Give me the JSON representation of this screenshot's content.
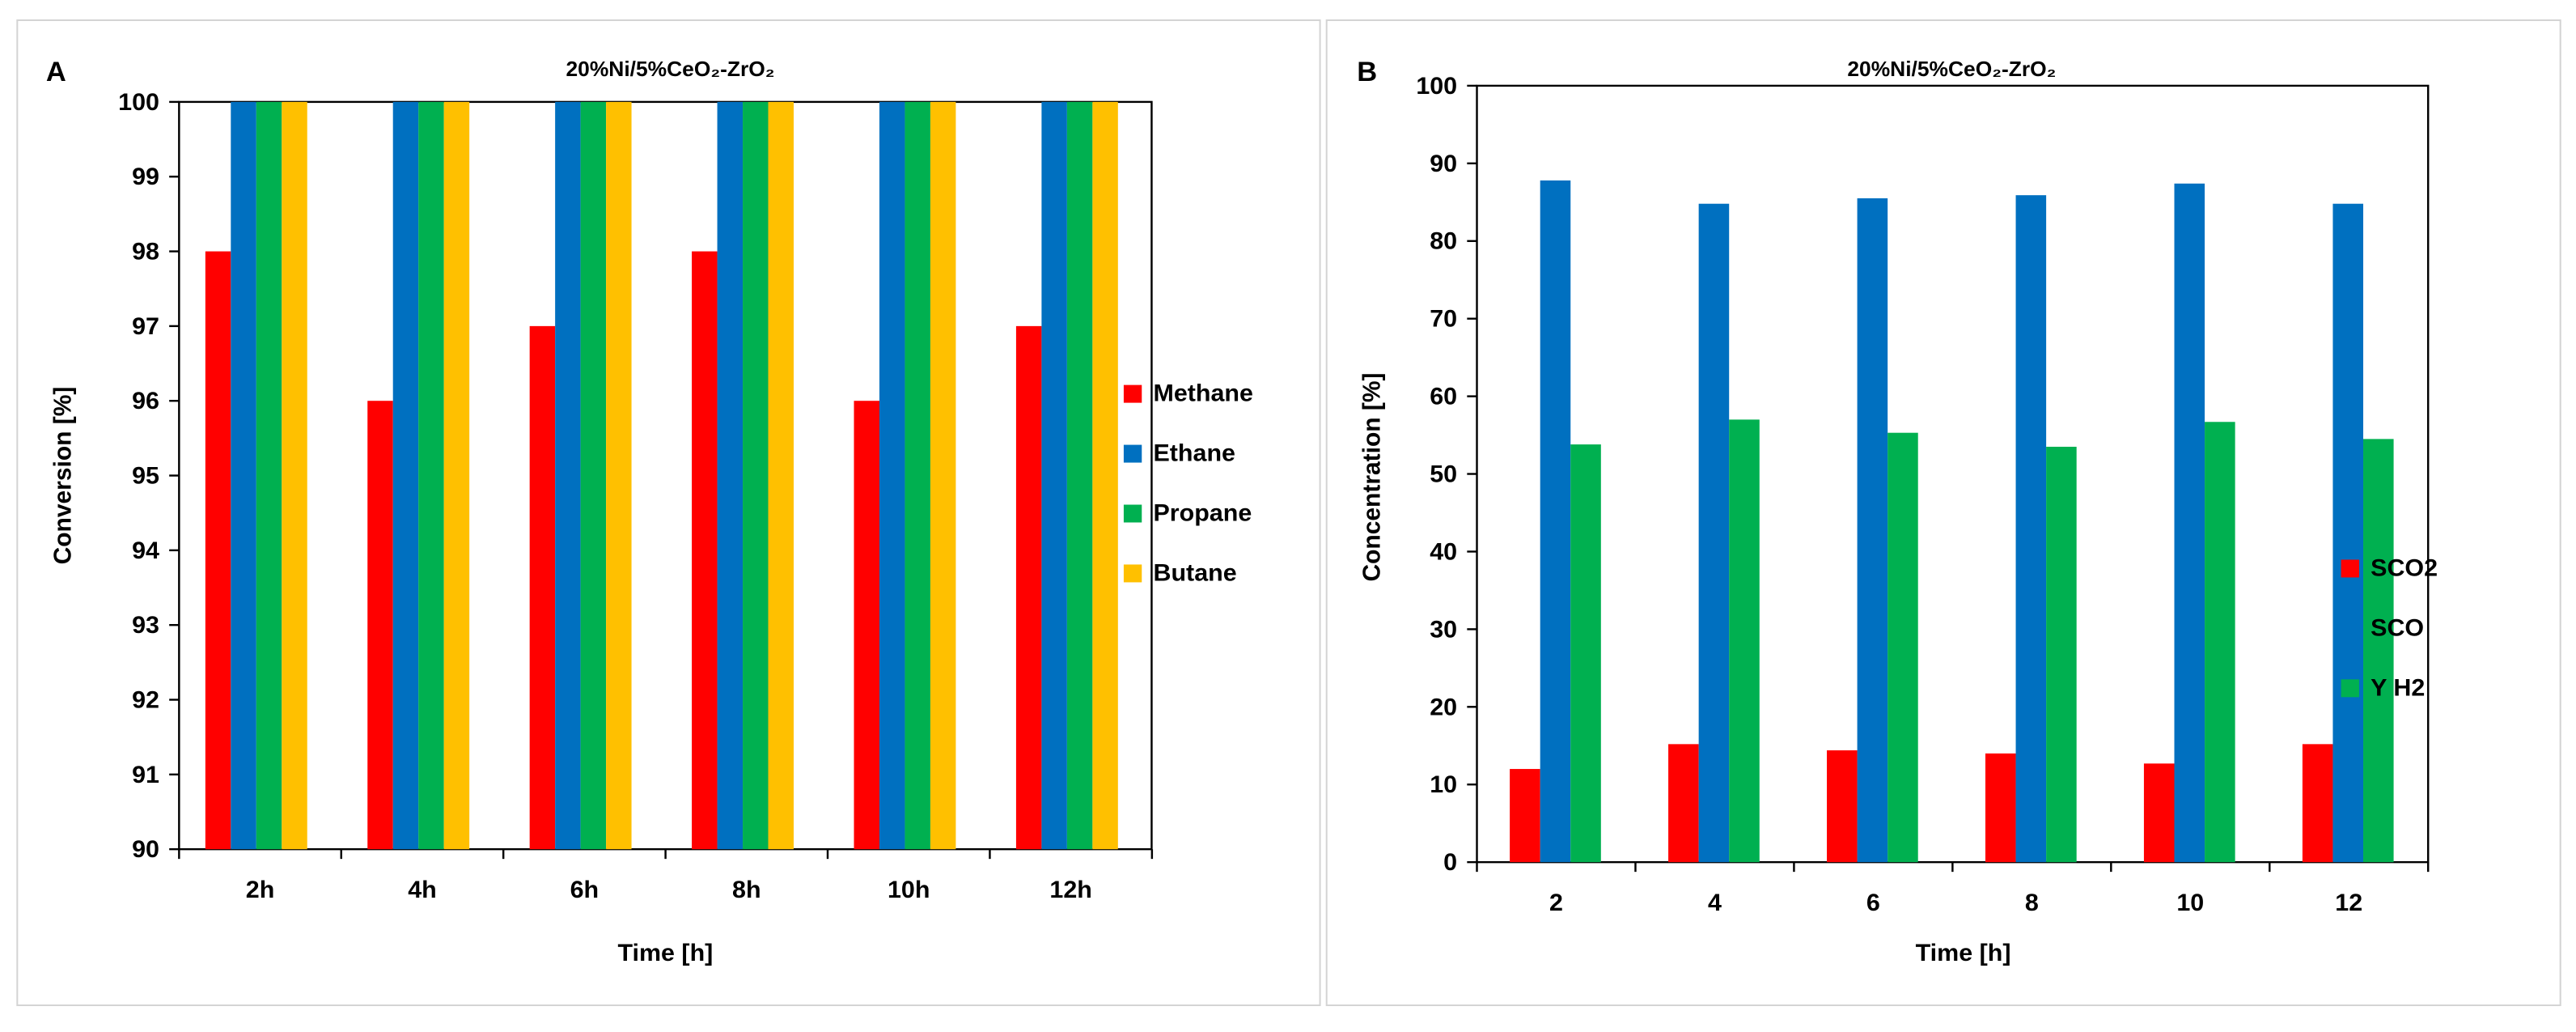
{
  "chart_data": [
    {
      "type": "bar",
      "panel_label": "A",
      "title": "20%Ni/5%CeO₂-ZrO₂",
      "xlabel": "Time [h]",
      "ylabel": "Conversion [%]",
      "ylim": [
        90,
        100
      ],
      "yticks": [
        "90",
        "91",
        "92",
        "93",
        "94",
        "95",
        "96",
        "97",
        "98",
        "99",
        "100"
      ],
      "categories": [
        "2h",
        "4h",
        "6h",
        "8h",
        "10h",
        "12h"
      ],
      "series": [
        {
          "name": "Methane",
          "color": "#ff0000",
          "values": [
            98,
            96,
            97,
            98,
            96,
            97
          ]
        },
        {
          "name": "Ethane",
          "color": "#0070c0",
          "values": [
            100,
            100,
            100,
            100,
            100,
            100
          ]
        },
        {
          "name": "Propane",
          "color": "#00b050",
          "values": [
            100,
            100,
            100,
            100,
            100,
            100
          ]
        },
        {
          "name": "Butane",
          "color": "#ffc000",
          "values": [
            100,
            100,
            100,
            100,
            100,
            100
          ]
        }
      ],
      "legend_position": "right",
      "grid": false
    },
    {
      "type": "bar",
      "panel_label": "B",
      "title": "20%Ni/5%CeO₂-ZrO₂",
      "xlabel": "Time [h]",
      "ylabel": "Concentration [%]",
      "ylim": [
        0,
        100
      ],
      "yticks": [
        "0",
        "10",
        "20",
        "30",
        "40",
        "50",
        "60",
        "70",
        "80",
        "90",
        "100"
      ],
      "categories": [
        "2",
        "4",
        "6",
        "8",
        "10",
        "12"
      ],
      "series": [
        {
          "name": "SCO2",
          "color": "#ff0000",
          "values": [
            12,
            15.2,
            14.4,
            14,
            12.7,
            15.2
          ]
        },
        {
          "name": "SCO",
          "color": "#0070c0",
          "values": [
            87.8,
            84.8,
            85.5,
            85.9,
            87.4,
            84.8
          ]
        },
        {
          "name": "Y H2",
          "color": "#00b050",
          "values": [
            53.8,
            57,
            55.3,
            53.5,
            56.7,
            54.5
          ]
        }
      ],
      "legend_position": "right",
      "grid": false
    }
  ]
}
